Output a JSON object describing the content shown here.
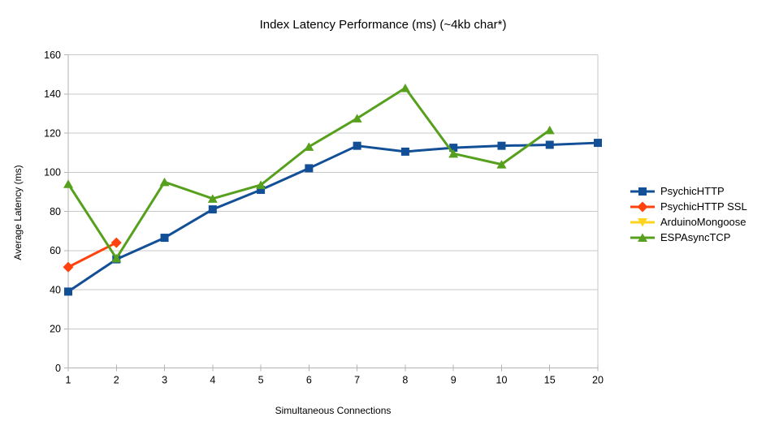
{
  "chart_data": {
    "type": "line",
    "title": "Index Latency Performance (ms) (~4kb char*)",
    "xlabel": "Simultaneous Connections",
    "ylabel": "Average Latency (ms)",
    "categories": [
      "1",
      "2",
      "3",
      "4",
      "5",
      "6",
      "7",
      "8",
      "9",
      "10",
      "15",
      "20"
    ],
    "ylim": [
      0,
      160
    ],
    "yticks": [
      0,
      20,
      40,
      60,
      80,
      100,
      120,
      140,
      160
    ],
    "grid": "horizontal",
    "legend_position": "right",
    "series": [
      {
        "name": "PsychicHTTP",
        "color": "#124F96",
        "marker": "square",
        "values": [
          39,
          55.5,
          66.5,
          81,
          91,
          102,
          113.5,
          110.5,
          112.5,
          113.5,
          114,
          115
        ]
      },
      {
        "name": "PsychicHTTP SSL",
        "color": "#FF420E",
        "marker": "diamond",
        "values": [
          51.5,
          64,
          null,
          null,
          null,
          null,
          null,
          null,
          null,
          null,
          null,
          null
        ]
      },
      {
        "name": "ArduinoMongoose",
        "color": "#FFD320",
        "marker": "triangle-down",
        "values": [
          null,
          null,
          null,
          null,
          null,
          null,
          null,
          null,
          null,
          null,
          null,
          null
        ]
      },
      {
        "name": "ESPAsyncTCP",
        "color": "#57A01E",
        "marker": "triangle-up",
        "values": [
          94,
          56,
          95,
          86.5,
          93.5,
          113,
          127.5,
          143,
          109.5,
          104,
          121.5,
          null
        ]
      }
    ],
    "colors": {
      "gridline": "#C8C8C8",
      "axis": "#B3B3B3",
      "text": "#000000",
      "background": "#FFFFFF"
    }
  }
}
